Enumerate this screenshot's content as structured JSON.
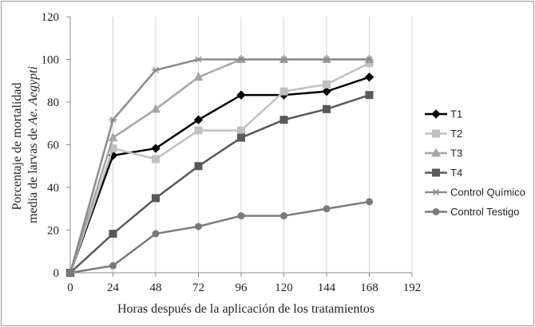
{
  "chart_data": {
    "type": "line",
    "title": "",
    "xlabel": "Horas después de la aplicación de los tratamientos",
    "ylabel_lines": [
      "Porcentaje de mortalidad",
      "media de larvas de ",
      "Ae. Aegypti"
    ],
    "x": [
      0,
      24,
      48,
      72,
      96,
      120,
      144,
      168
    ],
    "xticks": [
      0,
      24,
      48,
      72,
      96,
      120,
      144,
      168,
      192
    ],
    "yticks": [
      0,
      20,
      40,
      60,
      80,
      100,
      120
    ],
    "xlim": [
      0,
      192
    ],
    "ylim": [
      0,
      120
    ],
    "grid": "vertical",
    "legend_position": "right",
    "series": [
      {
        "name": "T1",
        "values": [
          0,
          55,
          58.3,
          71.7,
          83.3,
          83.3,
          85,
          91.7
        ],
        "color": "#000000",
        "marker": "diamond",
        "width": 2.5
      },
      {
        "name": "T2",
        "values": [
          0,
          58.3,
          53.3,
          66.7,
          66.7,
          85,
          88.3,
          98.3
        ],
        "color": "#c0c0c0",
        "marker": "square",
        "width": 2.5
      },
      {
        "name": "T3",
        "values": [
          0,
          63.3,
          76.7,
          91.7,
          100,
          100,
          100,
          100
        ],
        "color": "#a6a6a6",
        "marker": "triangle",
        "width": 2.5
      },
      {
        "name": "T4",
        "values": [
          0,
          18.3,
          35,
          50,
          63.3,
          71.7,
          76.7,
          83.3
        ],
        "color": "#595959",
        "marker": "square",
        "width": 2.5
      },
      {
        "name": "Control Químico",
        "values": [
          0,
          71.7,
          95,
          100,
          100,
          100,
          100,
          100
        ],
        "color": "#8c8c8c",
        "marker": "star",
        "width": 2.5
      },
      {
        "name": "Control Testigo",
        "values": [
          0,
          3.3,
          18.3,
          21.7,
          26.7,
          26.7,
          30,
          33.3
        ],
        "color": "#7a7a7a",
        "marker": "circle",
        "width": 2.5
      }
    ]
  }
}
